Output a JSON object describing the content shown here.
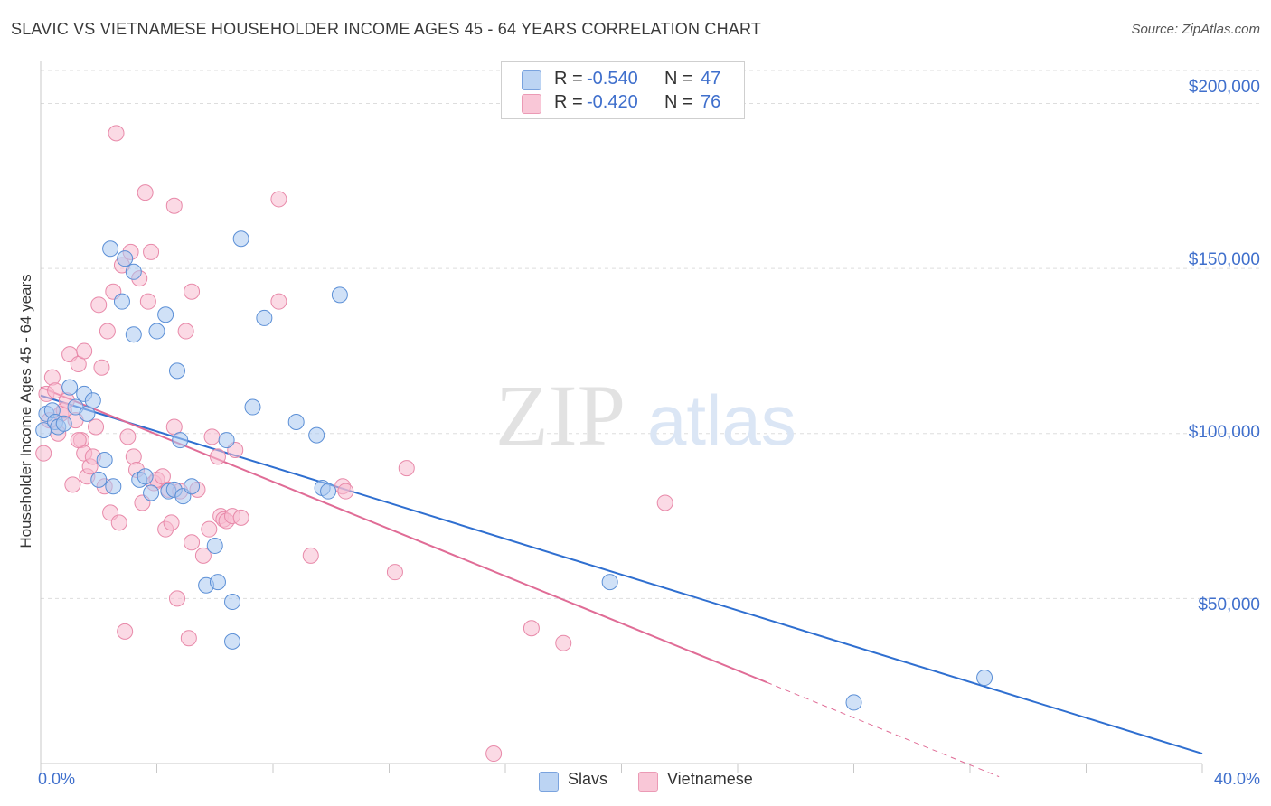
{
  "title": "SLAVIC VS VIETNAMESE HOUSEHOLDER INCOME AGES 45 - 64 YEARS CORRELATION CHART",
  "source": "Source: ZipAtlas.com",
  "watermark": {
    "zip": "ZIP",
    "atlas": "atlas"
  },
  "legend": {
    "r_label": "R =",
    "n_label": "N =",
    "slavs": {
      "r": "-0.540",
      "n": "47"
    },
    "vietnamese": {
      "r": "-0.420",
      "n": "76"
    }
  },
  "bottom_legend": {
    "slavs": "Slavs",
    "vietnamese": "Vietnamese"
  },
  "colors": {
    "slavs_fill": "#a9c8f0",
    "slavs_stroke": "#5b8fd6",
    "slavs_line": "#2f6fd0",
    "viet_fill": "#f8bcd0",
    "viet_stroke": "#e889a9",
    "viet_line": "#e06c96",
    "tick_text": "#3f6fcc",
    "grid": "#dddddd"
  },
  "chart_data": {
    "type": "scatter",
    "title": "SLAVIC VS VIETNAMESE HOUSEHOLDER INCOME AGES 45 - 64 YEARS CORRELATION CHART",
    "xlabel": "",
    "ylabel": "Householder Income Ages 45 - 64 years",
    "xlim": [
      0,
      40
    ],
    "ylim": [
      0,
      210000
    ],
    "x_tick_labels": [
      "0.0%",
      "40.0%"
    ],
    "y_ticks": [
      50000,
      100000,
      150000,
      200000
    ],
    "y_tick_labels": [
      "$50,000",
      "$100,000",
      "$150,000",
      "$200,000"
    ],
    "series": [
      {
        "name": "Slavs",
        "r": -0.54,
        "n": 47,
        "trend": {
          "x0": 0,
          "y0": 111500,
          "x1": 40,
          "y1": 3000,
          "dashed_from": null
        },
        "points": [
          [
            0.1,
            101000
          ],
          [
            0.2,
            106000
          ],
          [
            0.4,
            107000
          ],
          [
            0.5,
            103500
          ],
          [
            0.6,
            102000
          ],
          [
            0.8,
            103000
          ],
          [
            1.0,
            114000
          ],
          [
            1.2,
            108000
          ],
          [
            1.5,
            112000
          ],
          [
            1.6,
            106000
          ],
          [
            1.8,
            110000
          ],
          [
            2.0,
            86000
          ],
          [
            2.2,
            92000
          ],
          [
            2.4,
            156000
          ],
          [
            2.5,
            84000
          ],
          [
            2.8,
            140000
          ],
          [
            2.9,
            153000
          ],
          [
            3.2,
            149000
          ],
          [
            3.2,
            130000
          ],
          [
            3.4,
            86000
          ],
          [
            3.6,
            87000
          ],
          [
            3.8,
            82000
          ],
          [
            4.0,
            131000
          ],
          [
            4.3,
            136000
          ],
          [
            4.4,
            82500
          ],
          [
            4.6,
            83000
          ],
          [
            4.7,
            119000
          ],
          [
            4.8,
            98000
          ],
          [
            4.9,
            81000
          ],
          [
            5.2,
            84000
          ],
          [
            5.7,
            54000
          ],
          [
            6.0,
            66000
          ],
          [
            6.1,
            55000
          ],
          [
            6.4,
            98000
          ],
          [
            6.6,
            37000
          ],
          [
            6.6,
            49000
          ],
          [
            6.9,
            159000
          ],
          [
            7.3,
            108000
          ],
          [
            7.7,
            135000
          ],
          [
            8.8,
            103500
          ],
          [
            9.5,
            99500
          ],
          [
            9.7,
            83500
          ],
          [
            9.9,
            82500
          ],
          [
            10.3,
            142000
          ],
          [
            19.6,
            55000
          ],
          [
            28.0,
            18500
          ],
          [
            32.5,
            26000
          ]
        ]
      },
      {
        "name": "Vietnamese",
        "r": -0.42,
        "n": 76,
        "trend": {
          "x0": 0,
          "y0": 114000,
          "x1": 33,
          "y1": -4000,
          "dashed_from": 25
        },
        "points": [
          [
            0.1,
            94000
          ],
          [
            0.2,
            112000
          ],
          [
            0.3,
            104000
          ],
          [
            0.4,
            117000
          ],
          [
            0.5,
            113000
          ],
          [
            0.6,
            100000
          ],
          [
            0.7,
            106000
          ],
          [
            0.8,
            107000
          ],
          [
            0.9,
            110000
          ],
          [
            1.0,
            124000
          ],
          [
            1.1,
            84500
          ],
          [
            1.2,
            104000
          ],
          [
            1.3,
            121000
          ],
          [
            1.4,
            98000
          ],
          [
            1.5,
            94000
          ],
          [
            1.5,
            125000
          ],
          [
            1.6,
            87000
          ],
          [
            1.7,
            90000
          ],
          [
            1.8,
            93000
          ],
          [
            1.9,
            102000
          ],
          [
            2.0,
            139000
          ],
          [
            2.1,
            120000
          ],
          [
            2.2,
            84000
          ],
          [
            2.3,
            131000
          ],
          [
            2.4,
            76000
          ],
          [
            2.5,
            143000
          ],
          [
            2.6,
            191000
          ],
          [
            2.7,
            73000
          ],
          [
            2.8,
            151000
          ],
          [
            2.9,
            40000
          ],
          [
            3.0,
            99000
          ],
          [
            3.1,
            155000
          ],
          [
            3.2,
            93000
          ],
          [
            3.3,
            89000
          ],
          [
            3.4,
            147000
          ],
          [
            3.5,
            79000
          ],
          [
            3.6,
            173000
          ],
          [
            3.7,
            140000
          ],
          [
            3.8,
            155000
          ],
          [
            3.9,
            85000
          ],
          [
            4.0,
            86000
          ],
          [
            4.2,
            87000
          ],
          [
            4.3,
            71000
          ],
          [
            4.4,
            83000
          ],
          [
            4.5,
            73000
          ],
          [
            4.6,
            102000
          ],
          [
            4.6,
            169000
          ],
          [
            4.7,
            50000
          ],
          [
            4.8,
            82500
          ],
          [
            5.0,
            131000
          ],
          [
            5.1,
            38000
          ],
          [
            5.2,
            67000
          ],
          [
            5.2,
            143000
          ],
          [
            5.4,
            83000
          ],
          [
            5.6,
            63000
          ],
          [
            5.8,
            71000
          ],
          [
            5.9,
            99000
          ],
          [
            6.1,
            93000
          ],
          [
            6.2,
            75000
          ],
          [
            6.3,
            74000
          ],
          [
            6.4,
            73500
          ],
          [
            6.6,
            75000
          ],
          [
            6.7,
            95000
          ],
          [
            6.9,
            74500
          ],
          [
            8.2,
            171000
          ],
          [
            8.2,
            140000
          ],
          [
            9.3,
            63000
          ],
          [
            10.4,
            84000
          ],
          [
            10.5,
            82500
          ],
          [
            12.2,
            58000
          ],
          [
            12.6,
            89500
          ],
          [
            15.6,
            3000
          ],
          [
            16.9,
            41000
          ],
          [
            18.0,
            36500
          ],
          [
            21.5,
            79000
          ],
          [
            1.3,
            98000
          ]
        ]
      }
    ]
  }
}
